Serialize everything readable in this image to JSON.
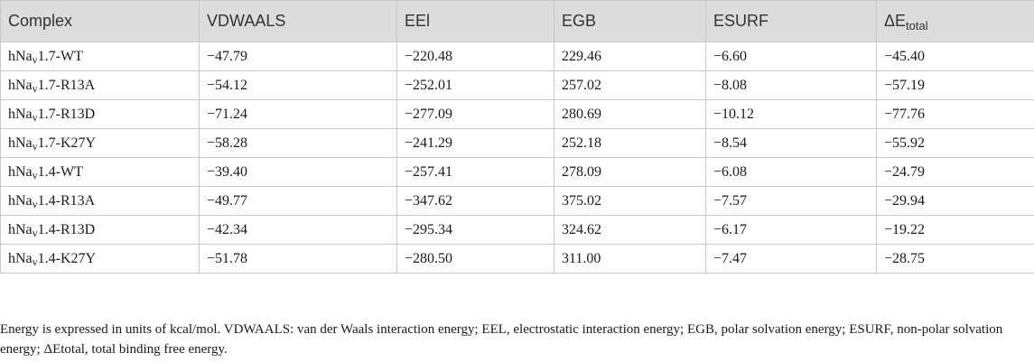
{
  "table": {
    "headers": {
      "complex": "Complex",
      "vdwaals": "VDWAALS",
      "eel": "EEl",
      "egb": "EGB",
      "esurf": "ESURF",
      "total_prefix": "ΔE",
      "total_sub": "total"
    },
    "rows": [
      {
        "prefix": "hNa",
        "sub": "v",
        "suffix": "1.7-WT",
        "vdwaals": "−47.79",
        "eel": "−220.48",
        "egb": "229.46",
        "esurf": "−6.60",
        "total": "−45.40"
      },
      {
        "prefix": "hNa",
        "sub": "v",
        "suffix": "1.7-R13A",
        "vdwaals": "−54.12",
        "eel": "−252.01",
        "egb": "257.02",
        "esurf": "−8.08",
        "total": "−57.19"
      },
      {
        "prefix": "hNa",
        "sub": "v",
        "suffix": "1.7-R13D",
        "vdwaals": "−71.24",
        "eel": "−277.09",
        "egb": "280.69",
        "esurf": "−10.12",
        "total": "−77.76"
      },
      {
        "prefix": "hNa",
        "sub": "v",
        "suffix": "1.7-K27Y",
        "vdwaals": "−58.28",
        "eel": "−241.29",
        "egb": "252.18",
        "esurf": "−8.54",
        "total": "−55.92"
      },
      {
        "prefix": "hNa",
        "sub": "v",
        "suffix": "1.4-WT",
        "vdwaals": "−39.40",
        "eel": "−257.41",
        "egb": "278.09",
        "esurf": "−6.08",
        "total": "−24.79"
      },
      {
        "prefix": "hNa",
        "sub": "v",
        "suffix": "1.4-R13A",
        "vdwaals": "−49.77",
        "eel": "−347.62",
        "egb": "375.02",
        "esurf": "−7.57",
        "total": "−29.94"
      },
      {
        "prefix": "hNa",
        "sub": "v",
        "suffix": "1.4-R13D",
        "vdwaals": "−42.34",
        "eel": "−295.34",
        "egb": "324.62",
        "esurf": "−6.17",
        "total": "−19.22"
      },
      {
        "prefix": "hNa",
        "sub": "v",
        "suffix": "1.4-K27Y",
        "vdwaals": "−51.78",
        "eel": "−280.50",
        "egb": "311.00",
        "esurf": "−7.47",
        "total": "−28.75"
      }
    ]
  },
  "footnote": "Energy is expressed in units of kcal/mol. VDWAALS: van der Waals interaction energy; EEL, electrostatic interaction energy; EGB, polar solvation energy; ESURF, non-polar solvation energy; ΔEtotal, total binding free energy."
}
